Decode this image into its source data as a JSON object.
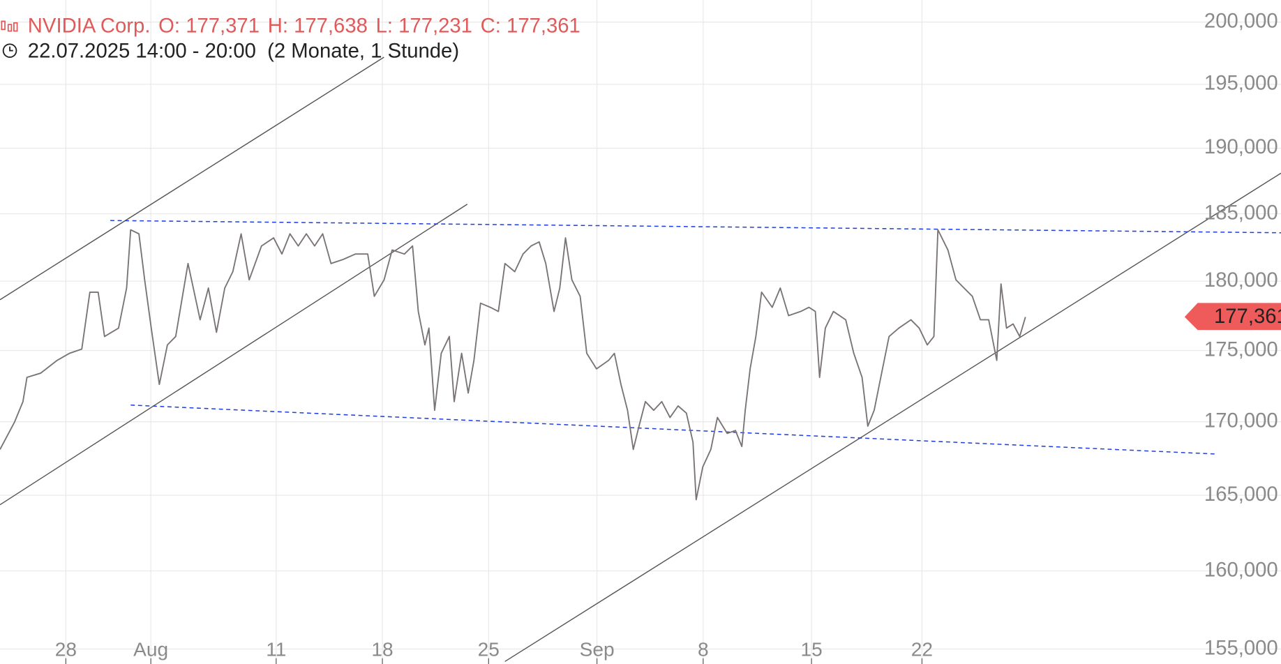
{
  "chart_data": {
    "type": "line",
    "title": "NVIDIA Corp.",
    "ohlc": [
      "O: 177,371",
      "H: 177,638",
      "L: 177,231",
      "C: 177,361"
    ],
    "subtitle": "22.07.2025 14:00 - 20:00  (2 Monate, 1 Stunde)",
    "last_price_label": "177,361",
    "color": "#7a7474",
    "ylog": true,
    "grid": true,
    "x": [
      0,
      0.69,
      1.08,
      1.27,
      1.92,
      2.69,
      3.27,
      3.85,
      4.23,
      4.62,
      4.92,
      5.58,
      5.96,
      6.15,
      6.54,
      6.81,
      7.12,
      7.5,
      7.88,
      8.27,
      8.85,
      9.42,
      9.81,
      10.19,
      10.58,
      10.96,
      11.35,
      11.73,
      12.31,
      12.88,
      13.27,
      13.65,
      14.04,
      14.42,
      14.81,
      15.19,
      15.58,
      16.15,
      16.73,
      17.31,
      17.62,
      18.08,
      18.46,
      19.04,
      19.42,
      19.69,
      20,
      20.19,
      20.46,
      20.77,
      21.15,
      21.38,
      21.73,
      22.04,
      22.31,
      22.62,
      23.08,
      23.46,
      23.77,
      24.23,
      24.62,
      25,
      25.38,
      25.69,
      26.08,
      26.35,
      26.62,
      26.92,
      27.31,
      27.62,
      28.08,
      28.65,
      28.92,
      29.23,
      29.54,
      29.81,
      30.08,
      30.38,
      30.77,
      31.15,
      31.54,
      31.92,
      32.31,
      32.62,
      32.77,
      33.08,
      33.46,
      33.77,
      34.23,
      34.62,
      34.92,
      35.08,
      35.31,
      35.58,
      35.85,
      36.35,
      36.73,
      37.12,
      37.69,
      38.08,
      38.38,
      38.58,
      38.85,
      39.23,
      39.81,
      40.19,
      40.58,
      40.85,
      41.15,
      41.46,
      41.85,
      42.31,
      42.88,
      43.27,
      43.65,
      43.96,
      44.15,
      44.62,
      45,
      45.38,
      45.77,
      46.15,
      46.54,
      46.92,
      47.12,
      47.38,
      47.69,
      48,
      48.27
    ],
    "values": [
      168.1,
      170.0,
      171.4,
      173.1,
      173.4,
      174.3,
      174.8,
      175.1,
      179.2,
      179.2,
      176.0,
      176.6,
      179.5,
      183.8,
      183.5,
      180.1,
      176.6,
      172.6,
      175.4,
      176.0,
      181.3,
      177.2,
      179.5,
      176.3,
      179.5,
      180.7,
      183.5,
      180.1,
      182.6,
      183.2,
      182.0,
      183.5,
      182.6,
      183.5,
      182.6,
      183.5,
      181.3,
      181.6,
      182.0,
      182.0,
      178.9,
      180.1,
      182.3,
      182.0,
      182.6,
      177.8,
      175.4,
      176.6,
      170.8,
      174.8,
      176.0,
      171.4,
      174.8,
      172.0,
      174.3,
      178.4,
      178.1,
      177.8,
      181.3,
      180.7,
      182.0,
      182.6,
      182.9,
      181.3,
      177.8,
      179.5,
      183.2,
      180.1,
      178.9,
      174.8,
      173.7,
      174.3,
      174.8,
      172.6,
      170.8,
      168.1,
      169.7,
      171.4,
      170.8,
      171.4,
      170.3,
      171.1,
      170.6,
      168.6,
      164.7,
      166.9,
      168.1,
      170.3,
      169.2,
      169.4,
      168.3,
      170.8,
      173.7,
      176.0,
      179.2,
      178.1,
      179.5,
      177.5,
      177.8,
      178.1,
      177.8,
      173.1,
      176.6,
      177.8,
      177.2,
      174.8,
      173.1,
      169.7,
      170.8,
      173.1,
      176.0,
      176.6,
      177.2,
      176.6,
      175.4,
      176.0,
      183.8,
      182.3,
      180.1,
      179.5,
      178.9,
      177.2,
      177.2,
      174.3,
      179.8,
      176.6,
      176.9,
      176.0,
      177.4
    ],
    "xlim": [
      0,
      60.3
    ],
    "xticks": [
      {
        "value": 3.1,
        "label": "28"
      },
      {
        "value": 7.1,
        "label": "Aug"
      },
      {
        "value": 13,
        "label": "11"
      },
      {
        "value": 18,
        "label": "18"
      },
      {
        "value": 23,
        "label": "25"
      },
      {
        "value": 28.1,
        "label": "Sep"
      },
      {
        "value": 33.1,
        "label": "8"
      },
      {
        "value": 38.2,
        "label": "15"
      },
      {
        "value": 43.4,
        "label": "22"
      }
    ],
    "ylim": [
      154.06,
      201.8
    ],
    "yticks": [
      {
        "value": 155,
        "label": "155,000"
      },
      {
        "value": 160,
        "label": "160,000"
      },
      {
        "value": 165,
        "label": "165,000"
      },
      {
        "value": 170,
        "label": "170,000"
      },
      {
        "value": 175,
        "label": "175,000"
      },
      {
        "value": 180,
        "label": "180,000"
      },
      {
        "value": 185,
        "label": "185,000"
      },
      {
        "value": 190,
        "label": "190,000"
      },
      {
        "value": 195,
        "label": "195,000"
      },
      {
        "value": 200,
        "label": "200,000"
      }
    ]
  }
}
